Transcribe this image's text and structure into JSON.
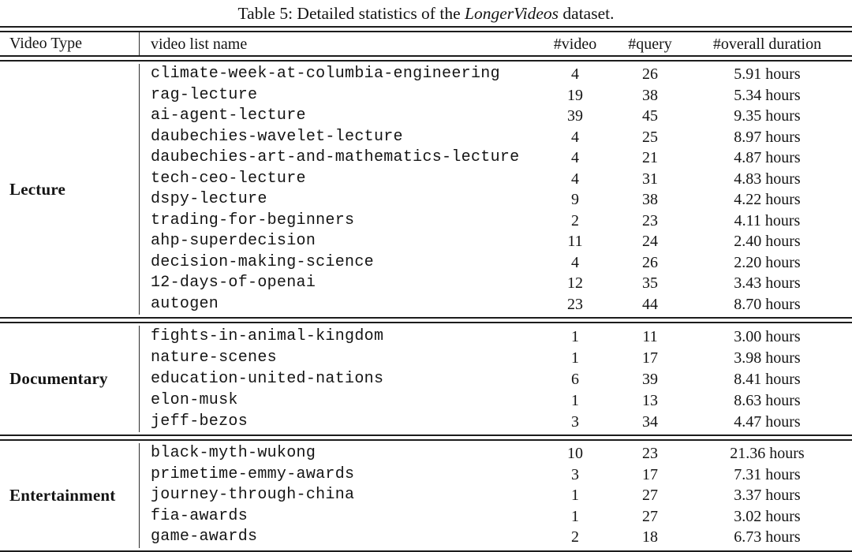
{
  "caption": {
    "prefix": "Table 5: Detailed statistics of the ",
    "emphasis": "LongerVideos",
    "suffix": " dataset."
  },
  "columns": [
    {
      "id": "video-type",
      "label": "Video Type"
    },
    {
      "id": "video-list-name",
      "label": "video list name"
    },
    {
      "id": "num-video",
      "label": "#video"
    },
    {
      "id": "num-query",
      "label": "#query"
    },
    {
      "id": "overall-duration",
      "label": "#overall duration"
    }
  ],
  "sections": [
    {
      "video_type": "Lecture",
      "rows": [
        {
          "name": "climate-week-at-columbia-engineering",
          "videos": "4",
          "queries": "26",
          "duration": "5.91 hours"
        },
        {
          "name": "rag-lecture",
          "videos": "19",
          "queries": "38",
          "duration": "5.34 hours"
        },
        {
          "name": "ai-agent-lecture",
          "videos": "39",
          "queries": "45",
          "duration": "9.35 hours"
        },
        {
          "name": "daubechies-wavelet-lecture",
          "videos": "4",
          "queries": "25",
          "duration": "8.97 hours"
        },
        {
          "name": "daubechies-art-and-mathematics-lecture",
          "videos": "4",
          "queries": "21",
          "duration": "4.87 hours"
        },
        {
          "name": "tech-ceo-lecture",
          "videos": "4",
          "queries": "31",
          "duration": "4.83 hours"
        },
        {
          "name": "dspy-lecture",
          "videos": "9",
          "queries": "38",
          "duration": "4.22 hours"
        },
        {
          "name": "trading-for-beginners",
          "videos": "2",
          "queries": "23",
          "duration": "4.11 hours"
        },
        {
          "name": "ahp-superdecision",
          "videos": "11",
          "queries": "24",
          "duration": "2.40 hours"
        },
        {
          "name": "decision-making-science",
          "videos": "4",
          "queries": "26",
          "duration": "2.20 hours"
        },
        {
          "name": "12-days-of-openai",
          "videos": "12",
          "queries": "35",
          "duration": "3.43 hours"
        },
        {
          "name": "autogen",
          "videos": "23",
          "queries": "44",
          "duration": "8.70 hours"
        }
      ]
    },
    {
      "video_type": "Documentary",
      "rows": [
        {
          "name": "fights-in-animal-kingdom",
          "videos": "1",
          "queries": "11",
          "duration": "3.00 hours"
        },
        {
          "name": "nature-scenes",
          "videos": "1",
          "queries": "17",
          "duration": "3.98 hours"
        },
        {
          "name": "education-united-nations",
          "videos": "6",
          "queries": "39",
          "duration": "8.41 hours"
        },
        {
          "name": "elon-musk",
          "videos": "1",
          "queries": "13",
          "duration": "8.63 hours"
        },
        {
          "name": "jeff-bezos",
          "videos": "3",
          "queries": "34",
          "duration": "4.47 hours"
        }
      ]
    },
    {
      "video_type": "Entertainment",
      "rows": [
        {
          "name": "black-myth-wukong",
          "videos": "10",
          "queries": "23",
          "duration": "21.36 hours"
        },
        {
          "name": "primetime-emmy-awards",
          "videos": "3",
          "queries": "17",
          "duration": "7.31 hours"
        },
        {
          "name": "journey-through-china",
          "videos": "1",
          "queries": "27",
          "duration": "3.37 hours"
        },
        {
          "name": "fia-awards",
          "videos": "1",
          "queries": "27",
          "duration": "3.02 hours"
        },
        {
          "name": "game-awards",
          "videos": "2",
          "queries": "18",
          "duration": "6.73 hours"
        }
      ]
    }
  ]
}
